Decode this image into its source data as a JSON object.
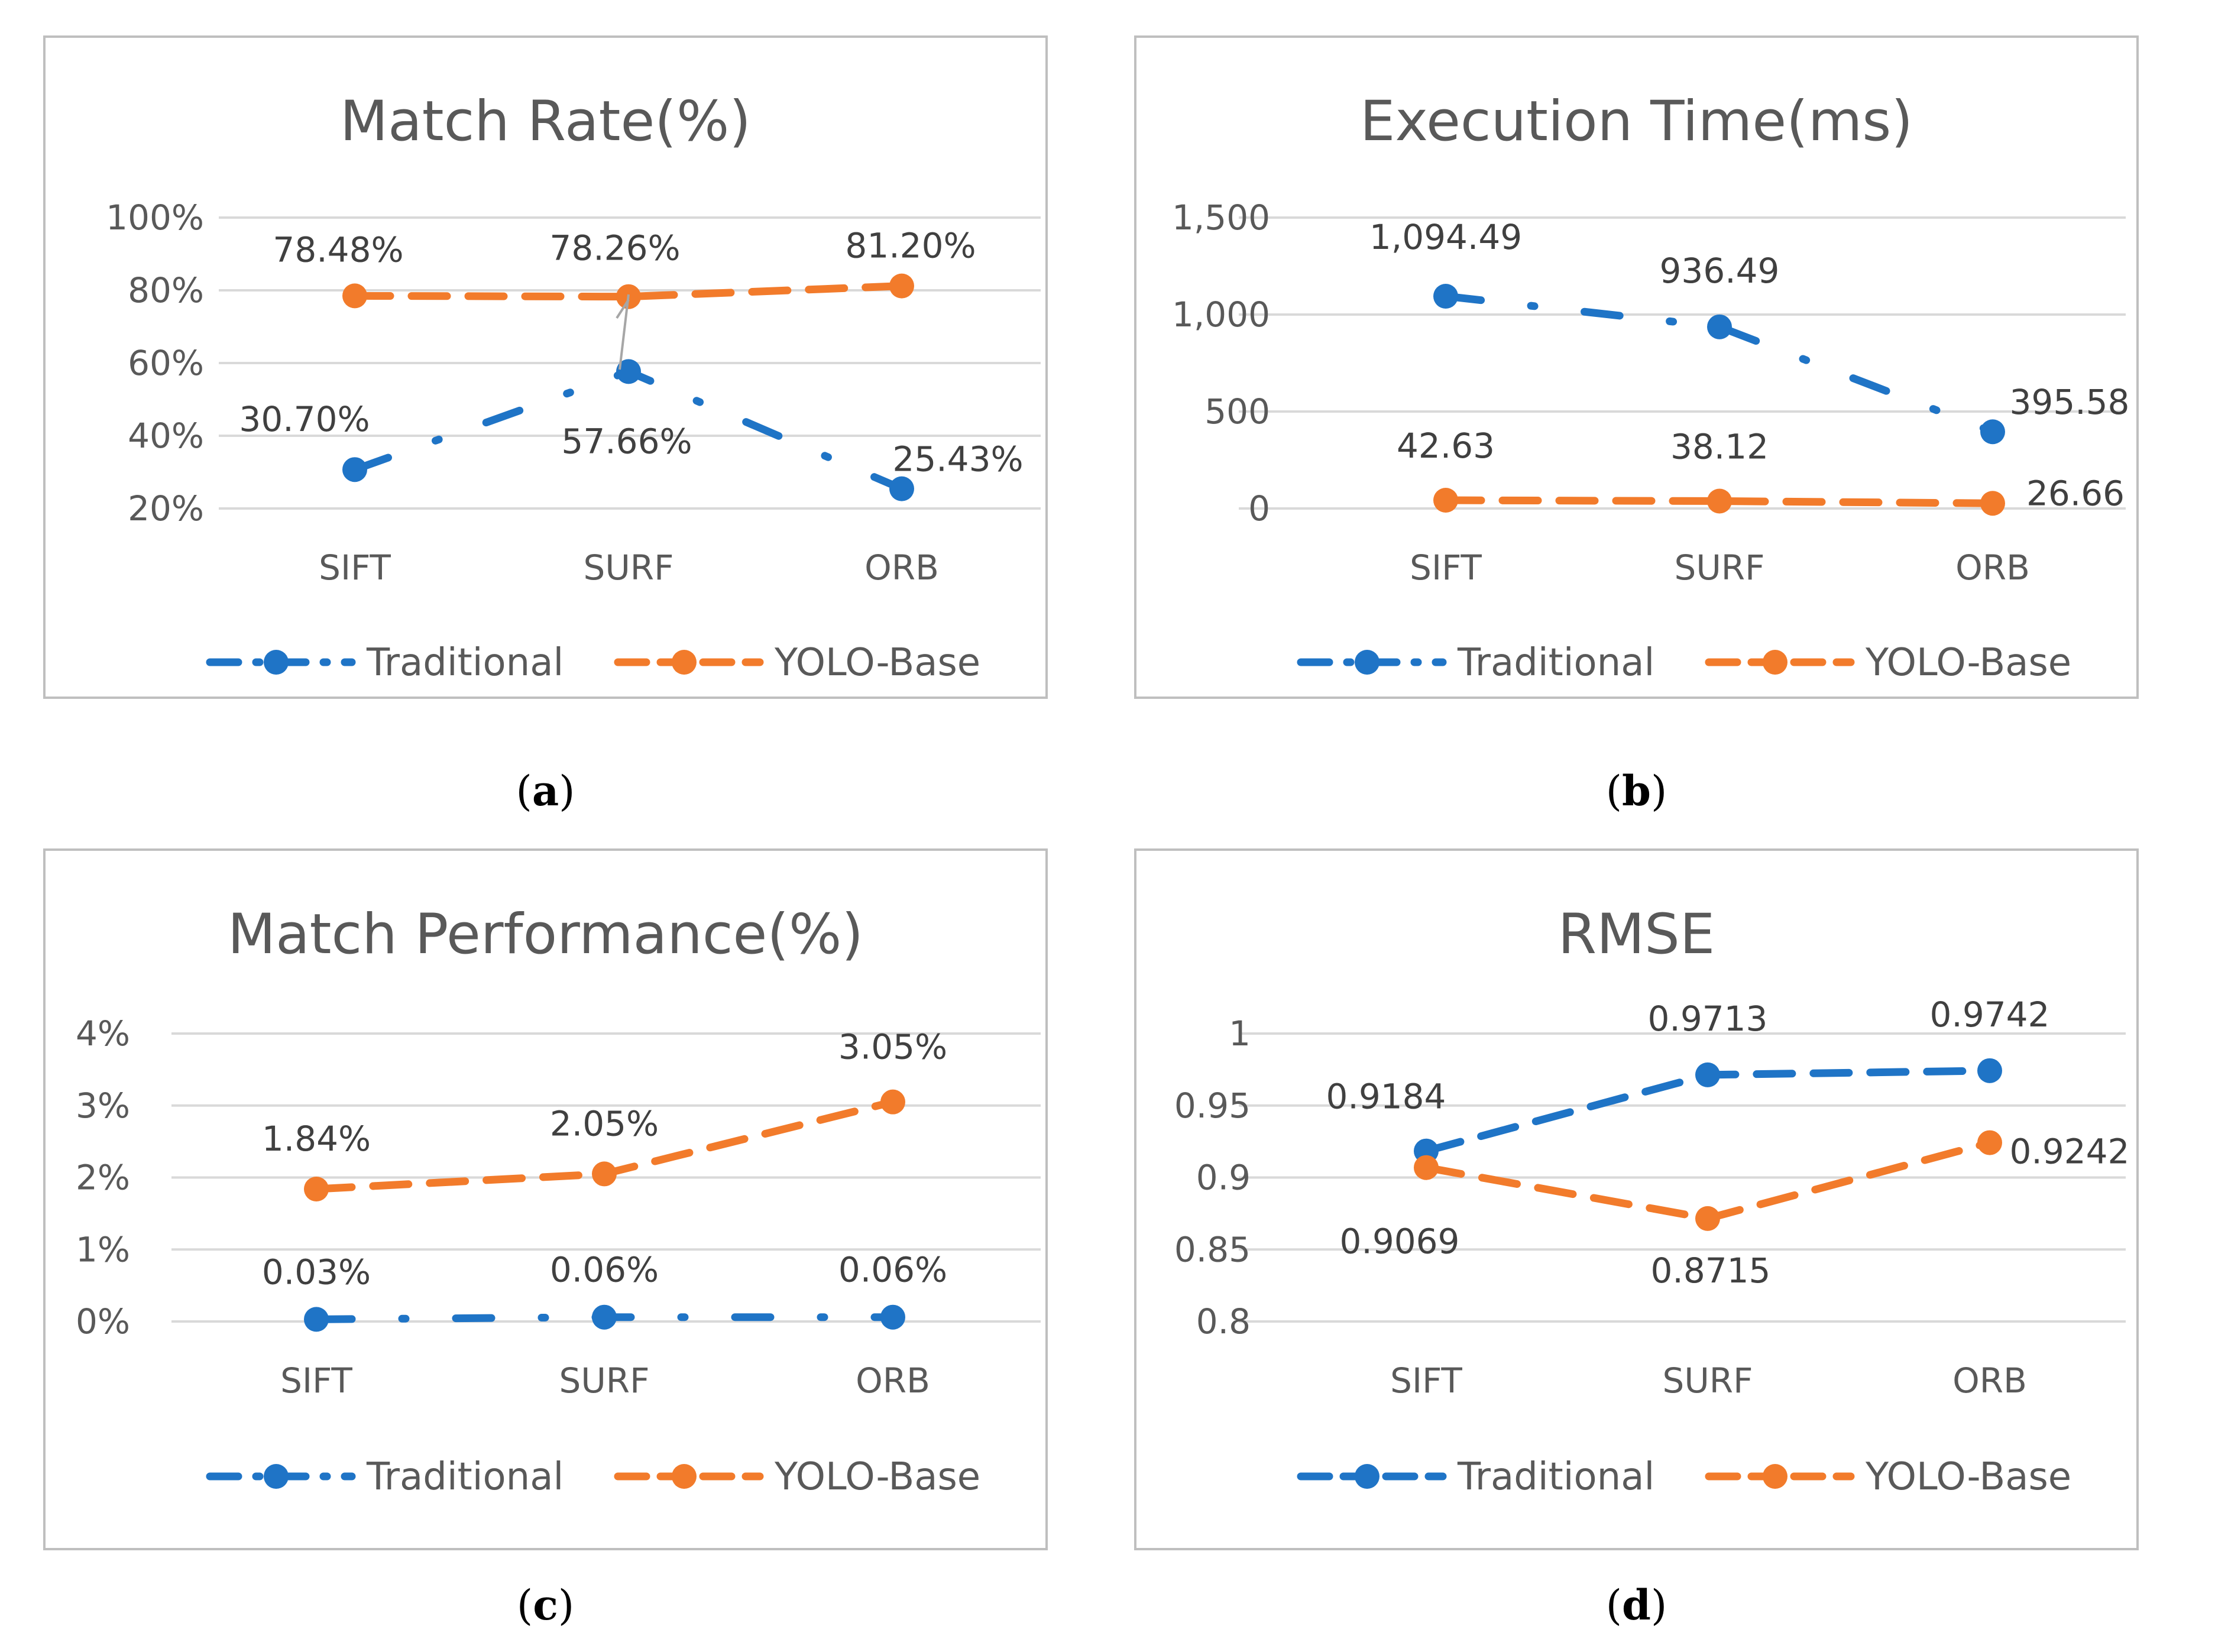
{
  "colors": {
    "traditional": "#1f74c6",
    "yolo": "#f27b2b",
    "grid": "#d9d9d9",
    "frame": "#bfbfbf"
  },
  "legend": {
    "traditional": "Traditional",
    "yolo": "YOLO-Base"
  },
  "chart_data": [
    {
      "type": "line",
      "title": "Match Rate(%)",
      "caption_letter": "a",
      "categories": [
        "SIFT",
        "SURF",
        "ORB"
      ],
      "ylim": [
        20,
        100
      ],
      "yticks": [
        20,
        40,
        60,
        80,
        100
      ],
      "ytick_labels": [
        "20%",
        "40%",
        "60%",
        "80%",
        "100%"
      ],
      "series": [
        {
          "name": "Traditional",
          "style": "dash-dot",
          "values": [
            30.7,
            57.66,
            25.43
          ],
          "labels": [
            "30.70%",
            "57.66%",
            "25.43%"
          ]
        },
        {
          "name": "YOLO-Base",
          "style": "dash",
          "values": [
            78.48,
            78.26,
            81.2
          ],
          "labels": [
            "78.48%",
            "78.26%",
            "81.20%"
          ]
        }
      ]
    },
    {
      "type": "line",
      "title": "Execution Time(ms)",
      "caption_letter": "b",
      "categories": [
        "SIFT",
        "SURF",
        "ORB"
      ],
      "ylim": [
        0,
        1500
      ],
      "yticks": [
        0,
        500,
        1000,
        1500
      ],
      "ytick_labels": [
        "0",
        "500",
        "1,000",
        "1,500"
      ],
      "series": [
        {
          "name": "Traditional",
          "style": "dash-dot",
          "values": [
            1094.49,
            936.49,
            395.58
          ],
          "labels": [
            "1,094.49",
            "936.49",
            "395.58"
          ]
        },
        {
          "name": "YOLO-Base",
          "style": "dash",
          "values": [
            42.63,
            38.12,
            26.66
          ],
          "labels": [
            "42.63",
            "38.12",
            "26.66"
          ]
        }
      ]
    },
    {
      "type": "line",
      "title": "Match Performance(%)",
      "caption_letter": "c",
      "categories": [
        "SIFT",
        "SURF",
        "ORB"
      ],
      "ylim": [
        0,
        4
      ],
      "yticks": [
        0,
        1,
        2,
        3,
        4
      ],
      "ytick_labels": [
        "0%",
        "1%",
        "2%",
        "3%",
        "4%"
      ],
      "series": [
        {
          "name": "Traditional",
          "style": "dash-dot",
          "values": [
            0.03,
            0.06,
            0.06
          ],
          "labels": [
            "0.03%",
            "0.06%",
            "0.06%"
          ]
        },
        {
          "name": "YOLO-Base",
          "style": "dash",
          "values": [
            1.84,
            2.05,
            3.05
          ],
          "labels": [
            "1.84%",
            "2.05%",
            "3.05%"
          ]
        }
      ]
    },
    {
      "type": "line",
      "title": "RMSE",
      "caption_letter": "d",
      "categories": [
        "SIFT",
        "SURF",
        "ORB"
      ],
      "ylim": [
        0.8,
        1.0
      ],
      "yticks": [
        0.8,
        0.85,
        0.9,
        0.95,
        1.0
      ],
      "ytick_labels": [
        "0.8",
        "0.85",
        "0.9",
        "0.95",
        "1"
      ],
      "series": [
        {
          "name": "Traditional",
          "style": "dash",
          "values": [
            0.9184,
            0.9713,
            0.9742
          ],
          "labels": [
            "0.9184",
            "0.9713",
            "0.9742"
          ]
        },
        {
          "name": "YOLO-Base",
          "style": "dash",
          "values": [
            0.9069,
            0.8715,
            0.9242
          ],
          "labels": [
            "0.9069",
            "0.8715",
            "0.9242"
          ]
        }
      ]
    }
  ]
}
